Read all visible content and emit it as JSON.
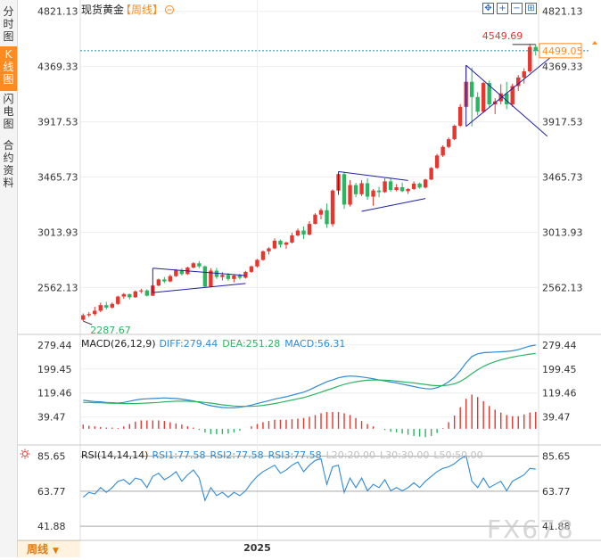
{
  "sidebar": {
    "tabs": [
      {
        "label": "分时图",
        "active": false
      },
      {
        "label": "K线图",
        "active": true
      },
      {
        "label": "闪电图",
        "active": false
      },
      {
        "label": "合约资料",
        "active": false
      }
    ]
  },
  "header": {
    "instrument": "现货黄金",
    "period_tag": "【周线】",
    "period_toggle_icon": "circle-minus-icon"
  },
  "controls": [
    {
      "name": "move-icon",
      "glyph": "✥"
    },
    {
      "name": "zoom-in-icon",
      "glyph": "+"
    },
    {
      "name": "zoom-out-icon",
      "glyph": "−"
    },
    {
      "name": "fullscreen-icon",
      "glyph": "⊞"
    }
  ],
  "period_button": {
    "label": "周线",
    "icon": "triangle-down-icon"
  },
  "watermark": "FX678",
  "colors": {
    "up": "#e8352e",
    "down": "#2bb563",
    "diff": "#2f8ad6",
    "dea": "#2bb563",
    "pattern": "#1f1fa8",
    "price_line": "#1b8fa8",
    "accent": "#ff8a1f"
  },
  "chart_data": [
    {
      "type": "candlestick",
      "title": "现货黄金【周线】",
      "y_ticks": [
        "4821.13",
        "4369.33",
        "3917.53",
        "3465.73",
        "3013.93",
        "2562.13"
      ],
      "ylim": [
        2215,
        4870
      ],
      "x_tick_label": "2025",
      "x_tick_index": 30,
      "last_price_label": "4499.05",
      "last_price": 4499.05,
      "max_label": "4549.69",
      "max_value": 4549.69,
      "max_index": 78,
      "min_label": "2287.67",
      "min_value": 2287.67,
      "min_index": 0,
      "series": [
        {
          "name": "OHLC",
          "columns": [
            "open",
            "high",
            "low",
            "close"
          ],
          "values": [
            [
              2298,
              2350,
              2288,
              2335
            ],
            [
              2335,
              2362,
              2320,
              2345
            ],
            [
              2345,
              2405,
              2330,
              2372
            ],
            [
              2372,
              2438,
              2360,
              2418
            ],
            [
              2418,
              2445,
              2382,
              2398
            ],
            [
              2398,
              2440,
              2388,
              2428
            ],
            [
              2428,
              2495,
              2420,
              2488
            ],
            [
              2488,
              2516,
              2470,
              2508
            ],
            [
              2508,
              2512,
              2465,
              2482
            ],
            [
              2482,
              2538,
              2478,
              2530
            ],
            [
              2530,
              2552,
              2515,
              2538
            ],
            [
              2538,
              2548,
              2488,
              2495
            ],
            [
              2495,
              2585,
              2492,
              2578
            ],
            [
              2578,
              2635,
              2572,
              2628
            ],
            [
              2628,
              2648,
              2598,
              2612
            ],
            [
              2612,
              2668,
              2605,
              2655
            ],
            [
              2655,
              2712,
              2648,
              2705
            ],
            [
              2705,
              2720,
              2660,
              2672
            ],
            [
              2672,
              2732,
              2665,
              2725
            ],
            [
              2725,
              2770,
              2718,
              2760
            ],
            [
              2760,
              2778,
              2720,
              2735
            ],
            [
              2735,
              2742,
              2560,
              2570
            ],
            [
              2570,
              2720,
              2562,
              2700
            ],
            [
              2700,
              2722,
              2632,
              2648
            ],
            [
              2648,
              2688,
              2620,
              2665
            ],
            [
              2665,
              2680,
              2615,
              2632
            ],
            [
              2632,
              2668,
              2605,
              2660
            ],
            [
              2660,
              2675,
              2628,
              2642
            ],
            [
              2642,
              2698,
              2635,
              2690
            ],
            [
              2690,
              2742,
              2682,
              2735
            ],
            [
              2735,
              2795,
              2725,
              2788
            ],
            [
              2788,
              2865,
              2780,
              2858
            ],
            [
              2858,
              2892,
              2832,
              2882
            ],
            [
              2882,
              2965,
              2875,
              2945
            ],
            [
              2945,
              2955,
              2890,
              2912
            ],
            [
              2912,
              2938,
              2878,
              2930
            ],
            [
              2930,
              3010,
              2922,
              2988
            ],
            [
              2988,
              3045,
              2980,
              3028
            ],
            [
              3028,
              3062,
              2960,
              2995
            ],
            [
              2995,
              3105,
              2988,
              3082
            ],
            [
              3082,
              3170,
              3078,
              3158
            ],
            [
              3158,
              3210,
              3120,
              3195
            ],
            [
              3195,
              3248,
              3050,
              3080
            ],
            [
              3080,
              3365,
              3060,
              3355
            ],
            [
              3355,
              3510,
              3340,
              3490
            ],
            [
              3490,
              3508,
              3205,
              3240
            ],
            [
              3240,
              3440,
              3225,
              3400
            ],
            [
              3400,
              3418,
              3300,
              3325
            ],
            [
              3325,
              3440,
              3310,
              3415
            ],
            [
              3415,
              3455,
              3280,
              3305
            ],
            [
              3305,
              3368,
              3230,
              3355
            ],
            [
              3355,
              3385,
              3300,
              3342
            ],
            [
              3342,
              3455,
              3335,
              3430
            ],
            [
              3430,
              3460,
              3345,
              3360
            ],
            [
              3360,
              3408,
              3348,
              3382
            ],
            [
              3382,
              3420,
              3342,
              3350
            ],
            [
              3350,
              3375,
              3328,
              3368
            ],
            [
              3368,
              3430,
              3360,
              3412
            ],
            [
              3412,
              3420,
              3370,
              3380
            ],
            [
              3380,
              3452,
              3372,
              3445
            ],
            [
              3445,
              3548,
              3440,
              3540
            ],
            [
              3540,
              3655,
              3532,
              3642
            ],
            [
              3642,
              3725,
              3630,
              3712
            ],
            [
              3712,
              3790,
              3700,
              3775
            ],
            [
              3775,
              3895,
              3768,
              3885
            ],
            [
              3885,
              4062,
              3875,
              4040
            ],
            [
              4040,
              4380,
              4030,
              4245
            ],
            [
              4245,
              4360,
              3880,
              4120
            ],
            [
              4120,
              4160,
              3970,
              4000
            ],
            [
              4000,
              4245,
              3990,
              4235
            ],
            [
              4235,
              4255,
              4040,
              4060
            ],
            [
              4060,
              4110,
              3980,
              4085
            ],
            [
              4085,
              4225,
              4060,
              4150
            ],
            [
              4150,
              4245,
              4020,
              4060
            ],
            [
              4060,
              4230,
              4040,
              4210
            ],
            [
              4210,
              4300,
              4170,
              4280
            ],
            [
              4280,
              4355,
              4230,
              4330
            ],
            [
              4330,
              4550,
              4318,
              4530
            ],
            [
              4530,
              4550,
              4460,
              4499
            ]
          ]
        }
      ],
      "patterns": [
        {
          "name": "triangle-2024",
          "lines": [
            [
              [
                12,
                2720
              ],
              [
                28,
                2660
              ]
            ],
            [
              [
                12,
                2520
              ],
              [
                28,
                2595
              ]
            ],
            [
              [
                12,
                2720
              ],
              [
                12,
                2520
              ]
            ]
          ]
        },
        {
          "name": "triangle-2025",
          "lines": [
            [
              [
                44,
                3510
              ],
              [
                56,
                3438
              ]
            ],
            [
              [
                48,
                3185
              ],
              [
                59,
                3290
              ]
            ],
            [
              [
                44,
                3510
              ],
              [
                44,
                3320
              ]
            ]
          ]
        },
        {
          "name": "triangle-2025-q4",
          "lines": [
            [
              [
                66,
                4380
              ],
              [
                80,
                3800
              ]
            ],
            [
              [
                66,
                3880
              ],
              [
                82,
                4500
              ]
            ],
            [
              [
                66,
                4380
              ],
              [
                66,
                3880
              ]
            ]
          ]
        }
      ]
    },
    {
      "type": "line+bar",
      "title": "MACD(26,12,9)",
      "indicator": "MACD(26,12,9)",
      "readouts": [
        {
          "label": "DIFF:",
          "value": "279.44"
        },
        {
          "label": "DEA:",
          "value": "251.28"
        },
        {
          "label": "MACD:",
          "value": "56.31"
        }
      ],
      "y_ticks": [
        "279.44",
        "199.45",
        "119.46",
        "39.47"
      ],
      "ylim": [
        -45,
        300
      ],
      "series": [
        {
          "name": "DIFF",
          "values": [
            95,
            93,
            91,
            90,
            88,
            87,
            86,
            88,
            92,
            96,
            99,
            100,
            101,
            102,
            103,
            102,
            101,
            99,
            96,
            93,
            88,
            82,
            77,
            74,
            71,
            70,
            70,
            72,
            75,
            79,
            84,
            89,
            94,
            99,
            103,
            107,
            112,
            117,
            122,
            130,
            139,
            148,
            157,
            163,
            170,
            174,
            176,
            175,
            173,
            170,
            167,
            163,
            160,
            156,
            153,
            149,
            145,
            141,
            137,
            134,
            133,
            137,
            145,
            157,
            172,
            194,
            220,
            241,
            250,
            254,
            255,
            256,
            257,
            258,
            260,
            264,
            270,
            276,
            279.44
          ]
        },
        {
          "name": "DEA",
          "values": [
            88,
            88,
            87,
            87,
            86,
            85,
            85,
            84,
            84,
            84,
            85,
            86,
            87,
            88,
            90,
            91,
            92,
            92,
            92,
            91,
            90,
            88,
            86,
            83,
            80,
            78,
            76,
            75,
            75,
            75,
            76,
            78,
            81,
            84,
            88,
            92,
            96,
            100,
            104,
            110,
            116,
            122,
            129,
            135,
            142,
            148,
            153,
            157,
            160,
            162,
            163,
            163,
            162,
            161,
            159,
            157,
            155,
            153,
            150,
            148,
            145,
            144,
            144,
            146,
            150,
            158,
            170,
            184,
            197,
            208,
            217,
            224,
            230,
            235,
            239,
            243,
            246,
            249,
            251.28
          ]
        },
        {
          "name": "MACD",
          "values": [
            14,
            10,
            8,
            6,
            4,
            4,
            2,
            8,
            16,
            24,
            28,
            28,
            28,
            28,
            26,
            22,
            18,
            14,
            8,
            4,
            -4,
            -12,
            -18,
            -18,
            -18,
            -16,
            -12,
            -6,
            0,
            8,
            16,
            22,
            26,
            30,
            30,
            30,
            32,
            34,
            36,
            40,
            46,
            52,
            56,
            56,
            56,
            52,
            46,
            36,
            26,
            16,
            8,
            0,
            -4,
            -10,
            -12,
            -16,
            -20,
            -24,
            -26,
            -28,
            -24,
            -14,
            2,
            22,
            44,
            72,
            100,
            114,
            106,
            92,
            76,
            64,
            54,
            46,
            42,
            42,
            48,
            54,
            56.31
          ]
        }
      ]
    },
    {
      "type": "line",
      "title": "RSI(14,14,14)",
      "indicator": "RSI(14,14,14)",
      "readouts": [
        {
          "label": "RSI1:",
          "value": "77.58"
        },
        {
          "label": "RSI2:",
          "value": "77.58"
        },
        {
          "label": "RSI3:",
          "value": "77.58"
        },
        {
          "label": "L20:",
          "value": "20.00"
        },
        {
          "label": "L30:",
          "value": "30.00"
        },
        {
          "label": "L50:",
          "value": "50.00"
        }
      ],
      "y_ticks": [
        "85.65",
        "63.77",
        "41.88"
      ],
      "ylim": [
        33,
        91
      ],
      "series": [
        {
          "name": "RSI",
          "values": [
            60,
            63,
            62,
            66,
            63,
            66,
            70,
            71,
            68,
            72,
            71,
            66,
            73,
            75,
            71,
            73,
            76,
            70,
            74,
            77,
            72,
            58,
            66,
            61,
            63,
            60,
            63,
            61,
            64,
            69,
            73,
            76,
            78,
            80,
            75,
            77,
            80,
            82,
            76,
            80,
            83,
            84,
            68,
            79,
            80,
            63,
            72,
            66,
            72,
            64,
            68,
            66,
            71,
            64,
            66,
            64,
            66,
            69,
            66,
            70,
            73,
            76,
            78,
            79,
            81,
            84,
            86,
            70,
            66,
            72,
            66,
            68,
            70,
            64,
            70,
            72,
            74,
            78,
            77.58
          ]
        },
        {
          "name": "L50",
          "values": [
            50
          ]
        }
      ]
    }
  ]
}
